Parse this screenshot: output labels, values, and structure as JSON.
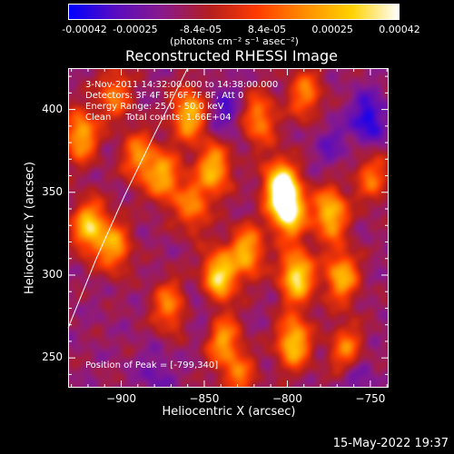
{
  "colorbar": {
    "tick_labels": [
      {
        "text": "-0.00042",
        "value": -0.00042
      },
      {
        "text": "-0.00025",
        "value": -0.00025
      },
      {
        "text": "-8.4e-05",
        "value": -8.4e-05
      },
      {
        "text": "8.4e-05",
        "value": 8.4e-05
      },
      {
        "text": "0.00025",
        "value": 0.00025
      },
      {
        "text": "0.00042",
        "value": 0.00042
      }
    ],
    "units": "(photons cm⁻² s⁻¹ asec⁻²)",
    "range": [
      -0.00042,
      0.00042
    ],
    "colors": [
      "#0000ff",
      "#5a0cbf",
      "#8a1a8a",
      "#b41e1e",
      "#ff3c00",
      "#ff8c00",
      "#ffd200",
      "#ffffff"
    ]
  },
  "info": {
    "time_range": "3-Nov-2011 14:32:00.000 to 14:38:00.000",
    "detectors": "Detectors: 3F 4F 5F 6F 7F 8F, Att 0",
    "energy_range": "Energy Range: 25.0 - 50.0 keV",
    "algorithm": "Clean     Total counts: 1.66E+04",
    "peak": "Position of Peak = [-799,340]"
  },
  "footer": {
    "date": "15-May-2022 19:37"
  },
  "chart_data": {
    "type": "heatmap",
    "title": "Reconstructed RHESSI Image",
    "xlabel": "Heliocentric X (arcsec)",
    "ylabel": "Heliocentric Y (arcsec)",
    "xlim": [
      -932,
      -739
    ],
    "ylim": [
      232,
      425
    ],
    "xticks": [
      -900,
      -850,
      -800,
      -750
    ],
    "yticks": [
      250,
      300,
      350,
      400
    ],
    "peak_position": [
      -799,
      340
    ],
    "limb_curve": [
      [
        -932,
        268
      ],
      [
        -915,
        310
      ],
      [
        -898,
        348
      ],
      [
        -880,
        385
      ],
      [
        -860,
        425
      ]
    ],
    "bright_sources": [
      {
        "x": -925,
        "y": 385,
        "value": 0.00025
      },
      {
        "x": -920,
        "y": 330,
        "value": 0.0003
      },
      {
        "x": -905,
        "y": 318,
        "value": 0.0002
      },
      {
        "x": -890,
        "y": 372,
        "value": 0.00018
      },
      {
        "x": -875,
        "y": 360,
        "value": 0.00022
      },
      {
        "x": -860,
        "y": 398,
        "value": 0.00028
      },
      {
        "x": -858,
        "y": 342,
        "value": 0.00015
      },
      {
        "x": -845,
        "y": 365,
        "value": 0.00026
      },
      {
        "x": -842,
        "y": 300,
        "value": 0.00035
      },
      {
        "x": -840,
        "y": 262,
        "value": 0.0002
      },
      {
        "x": -825,
        "y": 315,
        "value": 0.00025
      },
      {
        "x": -818,
        "y": 395,
        "value": 0.00018
      },
      {
        "x": -805,
        "y": 355,
        "value": 0.00038
      },
      {
        "x": -800,
        "y": 340,
        "value": 0.00042
      },
      {
        "x": -795,
        "y": 300,
        "value": 0.00036
      },
      {
        "x": -797,
        "y": 260,
        "value": 0.0003
      },
      {
        "x": -790,
        "y": 410,
        "value": 0.00015
      },
      {
        "x": -775,
        "y": 338,
        "value": 0.0003
      },
      {
        "x": -768,
        "y": 300,
        "value": 0.00025
      },
      {
        "x": -765,
        "y": 255,
        "value": 0.00018
      },
      {
        "x": -750,
        "y": 360,
        "value": 0.00012
      },
      {
        "x": -872,
        "y": 282,
        "value": 0.00016
      },
      {
        "x": -905,
        "y": 410,
        "value": 0.00014
      },
      {
        "x": -830,
        "y": 240,
        "value": 0.00012
      }
    ],
    "dark_regions": [
      {
        "x": -752,
        "y": 395,
        "value": -0.0004
      },
      {
        "x": -838,
        "y": 400,
        "value": -0.0003
      },
      {
        "x": -760,
        "y": 240,
        "value": -0.0003
      },
      {
        "x": -850,
        "y": 280,
        "value": -0.00025
      },
      {
        "x": -880,
        "y": 240,
        "value": -0.00025
      },
      {
        "x": -775,
        "y": 380,
        "value": -0.00025
      }
    ]
  }
}
